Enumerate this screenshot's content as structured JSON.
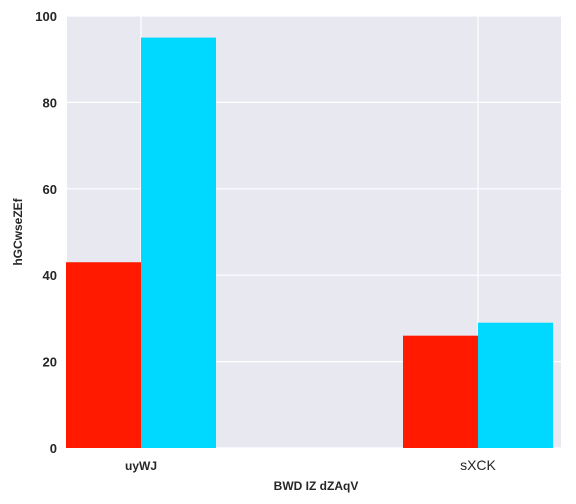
{
  "chart_data": {
    "type": "bar",
    "categories": [
      "uyWJ",
      "sXCK"
    ],
    "series": [
      {
        "values": [
          43,
          26
        ],
        "color": "#ff1a00"
      },
      {
        "values": [
          95,
          29
        ],
        "color": "#00d9ff"
      }
    ],
    "xlabel": "BWD IZ dZAqV",
    "ylabel": "hGCwseZEf",
    "ylim": [
      0,
      100
    ],
    "yticks": [
      0,
      20,
      40,
      60,
      80,
      100
    ],
    "grid": true,
    "legend": false,
    "background": "#e8e8f1",
    "grid_color": "#ffffff"
  }
}
